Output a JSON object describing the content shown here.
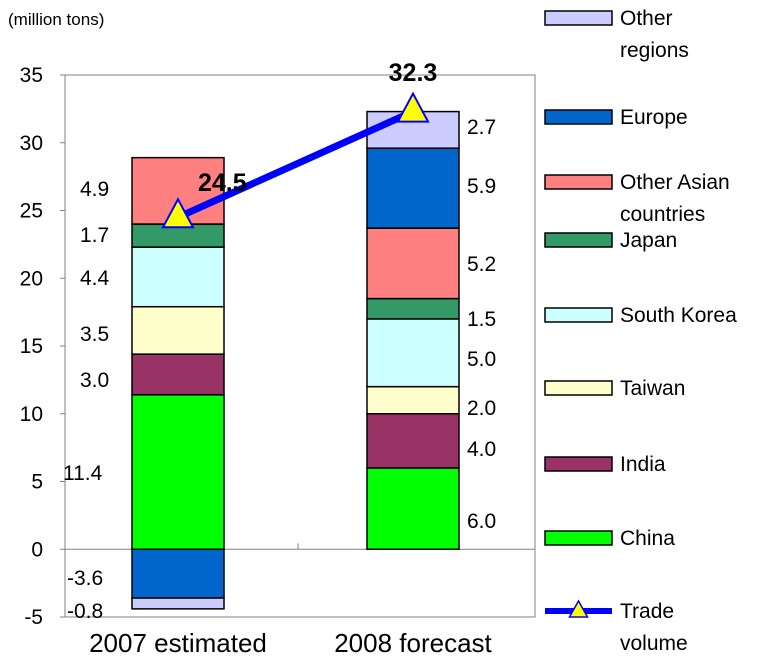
{
  "chart_data": {
    "type": "bar",
    "stacked": true,
    "unit_label": "(million tons)",
    "categories": [
      "2007 estimated",
      "2008 forecast"
    ],
    "ylim": [
      -5,
      35
    ],
    "yticks": [
      -5,
      0,
      5,
      10,
      15,
      20,
      25,
      30,
      35
    ],
    "grid": false,
    "legend_position": "right",
    "series": [
      {
        "name": "China",
        "values": [
          11.4,
          6.0
        ],
        "color": "#00ff00"
      },
      {
        "name": "India",
        "values": [
          3.0,
          4.0
        ],
        "color": "#993366"
      },
      {
        "name": "Taiwan",
        "values": [
          3.5,
          2.0
        ],
        "color": "#ffffcc"
      },
      {
        "name": "South Korea",
        "values": [
          4.4,
          5.0
        ],
        "color": "#ccffff"
      },
      {
        "name": "Japan",
        "values": [
          1.7,
          1.5
        ],
        "color": "#339966"
      },
      {
        "name": "Other Asian countries",
        "values": [
          4.9,
          5.2
        ],
        "color": "#ff8080"
      },
      {
        "name": "Europe",
        "values": [
          -3.6,
          5.9
        ],
        "color": "#0066cc"
      },
      {
        "name": "Other regions",
        "values": [
          -0.8,
          2.7
        ],
        "color": "#ccccff"
      }
    ],
    "trade_volume": {
      "name": "Trade volume",
      "values": [
        24.5,
        32.3
      ],
      "color": "#0000ff",
      "marker_color": "#ffff00"
    },
    "value_labels": [
      [
        "11.4",
        "3.0",
        "3.5",
        "4.4",
        "1.7",
        "4.9",
        "-3.6",
        "-0.8"
      ],
      [
        "6.0",
        "4.0",
        "2.0",
        "5.0",
        "1.5",
        "5.2",
        "5.9",
        "2.7"
      ]
    ],
    "total_labels": [
      "24.5",
      "32.3"
    ],
    "legend": [
      {
        "lines": [
          "Other",
          "regions"
        ],
        "color": "#ccccff"
      },
      {
        "lines": [
          "Europe"
        ],
        "color": "#0066cc"
      },
      {
        "lines": [
          "Other Asian",
          "countries"
        ],
        "color": "#ff8080"
      },
      {
        "lines": [
          "Japan"
        ],
        "color": "#339966"
      },
      {
        "lines": [
          "South Korea"
        ],
        "color": "#ccffff"
      },
      {
        "lines": [
          "Taiwan"
        ],
        "color": "#ffffcc"
      },
      {
        "lines": [
          "India"
        ],
        "color": "#993366"
      },
      {
        "lines": [
          "China"
        ],
        "color": "#00ff00"
      },
      {
        "lines": [
          "Trade",
          "volume"
        ],
        "color": "#0000ff",
        "marker": true
      }
    ]
  }
}
